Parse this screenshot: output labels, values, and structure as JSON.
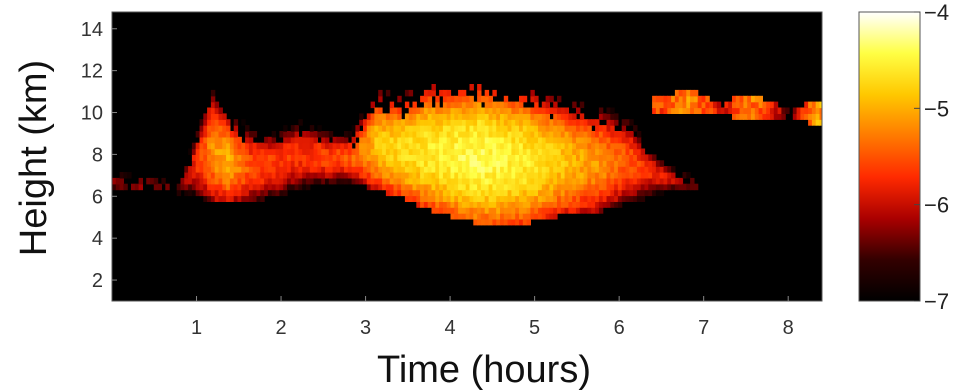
{
  "chart_data": {
    "type": "heatmap",
    "title": "",
    "xlabel": "Time (hours)",
    "ylabel": "Height (km)",
    "xlim": [
      0,
      8.4
    ],
    "ylim": [
      1,
      14.8
    ],
    "xticks": [
      1,
      2,
      3,
      4,
      5,
      6,
      7,
      8
    ],
    "yticks": [
      2,
      4,
      6,
      8,
      10,
      12,
      14
    ],
    "colormap": "hot",
    "colorbar": {
      "ticks": [
        -4,
        -5,
        -6,
        -7
      ],
      "range": [
        -7,
        -4
      ],
      "stops": [
        "#000000",
        "#330000",
        "#aa0000",
        "#ff2a00",
        "#ff7a00",
        "#ffc800",
        "#ffff44",
        "#ffffff"
      ]
    },
    "cloud_layer": {
      "columns": [
        [
          0.0,
          6.1,
          7.1,
          -6.2
        ],
        [
          0.35,
          6.2,
          6.7,
          -6.1
        ],
        [
          0.55,
          6.3,
          6.5,
          -6.3
        ],
        [
          0.75,
          6.0,
          6.5,
          -6.4
        ],
        [
          0.95,
          5.9,
          8.7,
          -5.8
        ],
        [
          1.15,
          5.6,
          10.7,
          -5.2
        ],
        [
          1.35,
          5.5,
          9.6,
          -5.0
        ],
        [
          1.6,
          5.6,
          9.0,
          -5.5
        ],
        [
          1.9,
          5.9,
          8.9,
          -5.6
        ],
        [
          2.2,
          6.2,
          9.5,
          -5.7
        ],
        [
          2.5,
          6.5,
          9.0,
          -5.6
        ],
        [
          2.8,
          6.6,
          8.8,
          -5.5
        ],
        [
          3.1,
          6.2,
          10.6,
          -4.9
        ],
        [
          3.4,
          5.8,
          10.2,
          -4.7
        ],
        [
          3.7,
          5.3,
          10.8,
          -4.6
        ],
        [
          4.0,
          4.9,
          10.7,
          -4.5
        ],
        [
          4.3,
          4.6,
          10.8,
          -4.4
        ],
        [
          4.6,
          4.5,
          10.7,
          -4.5
        ],
        [
          4.9,
          4.6,
          10.5,
          -4.6
        ],
        [
          5.2,
          4.9,
          10.2,
          -4.8
        ],
        [
          5.5,
          5.0,
          10.0,
          -5.0
        ],
        [
          5.8,
          5.2,
          9.8,
          -5.2
        ],
        [
          6.1,
          5.6,
          9.5,
          -5.5
        ],
        [
          6.4,
          5.9,
          8.0,
          -5.8
        ],
        [
          6.7,
          6.2,
          7.0,
          -6.0
        ],
        [
          6.9,
          6.3,
          6.6,
          -6.3
        ]
      ],
      "upper_fragments": [
        [
          6.45,
          9.9,
          10.7,
          -5.6
        ],
        [
          6.85,
          9.8,
          10.9,
          -5.2
        ],
        [
          7.2,
          9.8,
          10.2,
          -6.0
        ],
        [
          7.4,
          9.6,
          10.8,
          -5.4
        ],
        [
          7.6,
          9.6,
          10.6,
          -5.3
        ],
        [
          7.8,
          9.6,
          10.3,
          -5.9
        ],
        [
          8.0,
          9.7,
          9.9,
          -6.3
        ],
        [
          8.2,
          9.4,
          10.3,
          -5.5
        ],
        [
          8.32,
          9.2,
          10.5,
          -5.1
        ]
      ]
    }
  }
}
